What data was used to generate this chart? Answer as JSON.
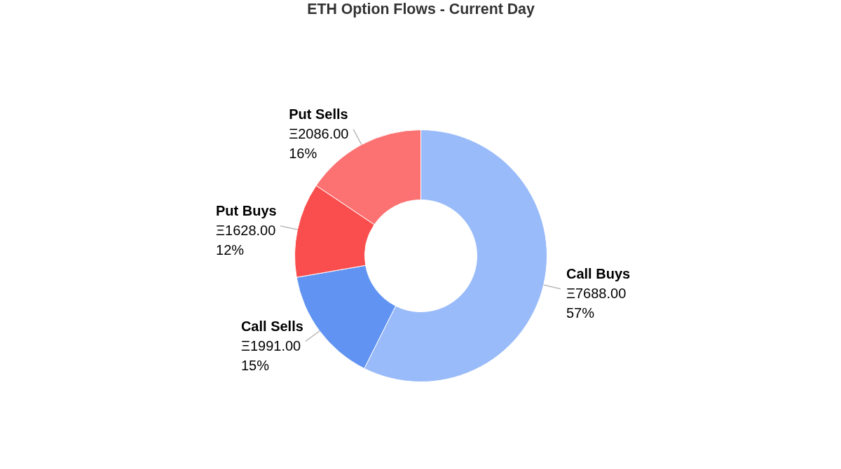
{
  "chart_data": {
    "type": "donut",
    "title": "ETH Option Flows - Current Day",
    "categories": [
      "Call Buys",
      "Call Sells",
      "Put Buys",
      "Put Sells"
    ],
    "values": [
      7688,
      1991,
      1628,
      2086
    ],
    "value_labels": [
      "Ξ7688.00\n57%",
      "Ξ1991.00\n15%",
      "Ξ1628.00\n12%",
      "Ξ2086.00\n16%"
    ],
    "colors": [
      "#99bbfa",
      "#6194f2",
      "#fa4e4e",
      "#fc7171"
    ],
    "legend": false
  }
}
